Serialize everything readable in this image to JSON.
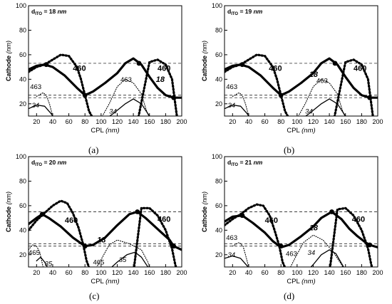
{
  "panels": [
    {
      "caption": "(a)",
      "thickness_label": "d",
      "thickness_sub": "ITO",
      "thickness_value": "= 18",
      "thickness_unit": "nm",
      "curve_labels": [
        {
          "text": "460",
          "at": [
            65,
            47
          ],
          "bold": true,
          "italic": false
        },
        {
          "text": "460",
          "at": [
            170,
            47
          ],
          "bold": true,
          "italic": false
        },
        {
          "text": "18",
          "at": [
            168,
            38
          ],
          "bold": true,
          "italic": true
        },
        {
          "text": "463",
          "at": [
            12,
            32
          ],
          "bold": false,
          "italic": false
        },
        {
          "text": "463",
          "at": [
            124,
            38
          ],
          "bold": false,
          "italic": false
        },
        {
          "text": "34",
          "at": [
            14,
            17
          ],
          "bold": false,
          "italic": true
        },
        {
          "text": "34",
          "at": [
            110,
            12
          ],
          "bold": false,
          "italic": true
        }
      ],
      "h_lines": [
        53,
        27,
        25
      ],
      "markers": [
        [
          32,
          52
        ],
        [
          80,
          27
        ],
        [
          147,
          53
        ],
        [
          190,
          25
        ]
      ]
    },
    {
      "caption": "(b)",
      "thickness_label": "d",
      "thickness_sub": "ITO",
      "thickness_value": "= 19",
      "thickness_unit": "nm",
      "curve_labels": [
        {
          "text": "460",
          "at": [
            65,
            47
          ],
          "bold": true,
          "italic": false
        },
        {
          "text": "460",
          "at": [
            170,
            47
          ],
          "bold": true,
          "italic": false
        },
        {
          "text": "18",
          "at": [
            115,
            42
          ],
          "bold": true,
          "italic": true
        },
        {
          "text": "463",
          "at": [
            12,
            32
          ],
          "bold": false,
          "italic": false
        },
        {
          "text": "463",
          "at": [
            124,
            37
          ],
          "bold": false,
          "italic": false
        },
        {
          "text": "34",
          "at": [
            14,
            17
          ],
          "bold": false,
          "italic": true
        },
        {
          "text": "34",
          "at": [
            110,
            12
          ],
          "bold": false,
          "italic": true
        }
      ],
      "h_lines": [
        53,
        27,
        25
      ],
      "markers": [
        [
          32,
          52
        ],
        [
          80,
          27
        ],
        [
          147,
          53
        ],
        [
          190,
          25
        ]
      ]
    },
    {
      "caption": "(c)",
      "thickness_label": "d",
      "thickness_sub": "ITO",
      "thickness_value": "= 20",
      "thickness_unit": "nm",
      "curve_labels": [
        {
          "text": "460",
          "at": [
            55,
            46
          ],
          "bold": true,
          "italic": false
        },
        {
          "text": "460",
          "at": [
            170,
            47
          ],
          "bold": true,
          "italic": false
        },
        {
          "text": "18",
          "at": [
            95,
            30
          ],
          "bold": true,
          "italic": true
        },
        {
          "text": "465",
          "at": [
            10,
            20
          ],
          "bold": false,
          "italic": false
        },
        {
          "text": "465",
          "at": [
            90,
            12
          ],
          "bold": false,
          "italic": false
        },
        {
          "text": "35",
          "at": [
            30,
            11
          ],
          "bold": false,
          "italic": true
        },
        {
          "text": "35",
          "at": [
            122,
            14
          ],
          "bold": false,
          "italic": true
        }
      ],
      "h_lines": [
        55,
        29,
        27
      ],
      "markers": [
        [
          27,
          53
        ],
        [
          80,
          27
        ],
        [
          145,
          55
        ],
        [
          190,
          27
        ]
      ]
    },
    {
      "caption": "(d)",
      "thickness_label": "d",
      "thickness_sub": "ITO",
      "thickness_value": "= 21",
      "thickness_unit": "nm",
      "curve_labels": [
        {
          "text": "460",
          "at": [
            60,
            46
          ],
          "bold": true,
          "italic": false
        },
        {
          "text": "460",
          "at": [
            168,
            47
          ],
          "bold": true,
          "italic": false
        },
        {
          "text": "18",
          "at": [
            115,
            40
          ],
          "bold": true,
          "italic": true
        },
        {
          "text": "463",
          "at": [
            12,
            32
          ],
          "bold": false,
          "italic": false
        },
        {
          "text": "463",
          "at": [
            86,
            19
          ],
          "bold": false,
          "italic": false
        },
        {
          "text": "34",
          "at": [
            14,
            18
          ],
          "bold": false,
          "italic": true
        },
        {
          "text": "34",
          "at": [
            113,
            20
          ],
          "bold": false,
          "italic": true
        }
      ],
      "h_lines": [
        55,
        29,
        27
      ],
      "markers": [
        [
          32,
          52
        ],
        [
          80,
          27
        ],
        [
          143,
          55
        ],
        [
          190,
          28
        ]
      ]
    }
  ],
  "chart_data": [
    {
      "type": "line",
      "panel": "(a)",
      "xlabel": "CPL",
      "xlabel_unit": "(nm)",
      "ylabel": "Cathode",
      "ylabel_unit": "(nm)",
      "xlim": [
        10,
        200
      ],
      "ylim": [
        10,
        100
      ],
      "xticks": [
        20,
        40,
        60,
        80,
        100,
        120,
        140,
        160,
        180,
        200
      ],
      "yticks": [
        20,
        40,
        60,
        80,
        100
      ],
      "series": [
        {
          "name": "18",
          "style": "solid-thick",
          "x": [
            10,
            20,
            30,
            40,
            55,
            70,
            80,
            90,
            105,
            120,
            130,
            140,
            150,
            160,
            170,
            180,
            190,
            200
          ],
          "y": [
            48,
            51,
            52,
            50,
            43,
            33,
            27,
            30,
            37,
            45,
            53,
            57,
            52,
            42,
            33,
            27,
            25,
            25
          ]
        },
        {
          "name": "460",
          "style": "dotted-thick",
          "x": [
            10,
            20,
            30,
            40,
            50,
            60,
            70,
            75,
            80,
            85,
            90,
            100,
            115,
            130,
            145,
            160,
            170,
            180,
            188,
            192,
            195
          ],
          "y": [
            46,
            50,
            52,
            56,
            60,
            59,
            50,
            40,
            27,
            14,
            8,
            5,
            5,
            5,
            5,
            54,
            56,
            52,
            40,
            20,
            5
          ]
        },
        {
          "name": "463",
          "style": "dotted-thin",
          "x": [
            20,
            28,
            32,
            36,
            40,
            60,
            100,
            110,
            120,
            130,
            140,
            150,
            156,
            162
          ],
          "y": [
            26,
            29,
            27,
            20,
            10,
            5,
            8,
            20,
            34,
            40,
            37,
            28,
            15,
            5
          ]
        },
        {
          "name": "34",
          "style": "solid-thin",
          "x": [
            10,
            20,
            30,
            38,
            45,
            100,
            115,
            130,
            140,
            150,
            158,
            165
          ],
          "y": [
            16,
            19,
            18,
            12,
            5,
            5,
            12,
            20,
            24,
            20,
            12,
            5
          ]
        }
      ]
    },
    {
      "type": "line",
      "panel": "(b)",
      "xlabel": "CPL",
      "xlabel_unit": "(nm)",
      "ylabel": "Cathode",
      "ylabel_unit": "(nm)",
      "xlim": [
        10,
        200
      ],
      "ylim": [
        10,
        100
      ],
      "xticks": [
        20,
        40,
        60,
        80,
        100,
        120,
        140,
        160,
        180,
        200
      ],
      "yticks": [
        20,
        40,
        60,
        80,
        100
      ],
      "series": [
        {
          "name": "18",
          "style": "solid-thick",
          "x": [
            10,
            20,
            30,
            40,
            55,
            70,
            80,
            90,
            105,
            120,
            130,
            140,
            150,
            160,
            170,
            180,
            190,
            200
          ],
          "y": [
            48,
            51,
            52,
            50,
            43,
            33,
            27,
            30,
            37,
            45,
            53,
            57,
            52,
            42,
            33,
            27,
            25,
            25
          ]
        },
        {
          "name": "460",
          "style": "dotted-thick",
          "x": [
            10,
            20,
            30,
            40,
            50,
            60,
            70,
            75,
            80,
            85,
            90,
            100,
            115,
            130,
            145,
            160,
            170,
            180,
            188,
            192,
            195
          ],
          "y": [
            46,
            50,
            52,
            56,
            60,
            59,
            50,
            40,
            27,
            14,
            8,
            5,
            5,
            5,
            5,
            54,
            56,
            52,
            40,
            20,
            5
          ]
        },
        {
          "name": "463",
          "style": "dotted-thin",
          "x": [
            20,
            28,
            32,
            36,
            40,
            60,
            100,
            110,
            120,
            130,
            140,
            150,
            156,
            162
          ],
          "y": [
            26,
            29,
            27,
            20,
            10,
            5,
            8,
            20,
            34,
            40,
            37,
            28,
            15,
            5
          ]
        },
        {
          "name": "34",
          "style": "solid-thin",
          "x": [
            10,
            20,
            30,
            38,
            45,
            100,
            115,
            130,
            140,
            150,
            158,
            165
          ],
          "y": [
            16,
            19,
            18,
            12,
            5,
            5,
            12,
            20,
            24,
            20,
            12,
            5
          ]
        }
      ]
    },
    {
      "type": "line",
      "panel": "(c)",
      "xlabel": "CPL",
      "xlabel_unit": "(nm)",
      "ylabel": "Cathode",
      "ylabel_unit": "(nm)",
      "xlim": [
        10,
        200
      ],
      "ylim": [
        10,
        100
      ],
      "xticks": [
        20,
        40,
        60,
        80,
        100,
        120,
        140,
        160,
        180,
        200
      ],
      "yticks": [
        20,
        40,
        60,
        80,
        100
      ],
      "series": [
        {
          "name": "18",
          "style": "solid-thick",
          "x": [
            10,
            20,
            27,
            35,
            50,
            65,
            80,
            90,
            105,
            120,
            135,
            145,
            155,
            165,
            175,
            185,
            190,
            200
          ],
          "y": [
            45,
            50,
            53,
            50,
            43,
            34,
            27,
            28,
            34,
            44,
            53,
            55,
            50,
            44,
            38,
            32,
            27,
            24
          ]
        },
        {
          "name": "460",
          "style": "dotted-thick",
          "x": [
            10,
            20,
            30,
            40,
            50,
            58,
            65,
            72,
            78,
            82,
            86,
            90,
            100,
            120,
            140,
            150,
            160,
            170,
            180,
            188,
            192,
            195
          ],
          "y": [
            40,
            48,
            54,
            60,
            64,
            62,
            54,
            42,
            28,
            15,
            8,
            5,
            5,
            5,
            5,
            58,
            58,
            52,
            40,
            25,
            12,
            5
          ]
        },
        {
          "name": "465",
          "style": "dotted-thin",
          "x": [
            10,
            15,
            20,
            24,
            28,
            60,
            90,
            100,
            110,
            120,
            135,
            150,
            158,
            162
          ],
          "y": [
            24,
            28,
            27,
            22,
            10,
            5,
            5,
            16,
            28,
            32,
            29,
            24,
            14,
            5
          ]
        },
        {
          "name": "35",
          "style": "solid-thin",
          "x": [
            20,
            25,
            30,
            34,
            38,
            100,
            110,
            120,
            132,
            142,
            150,
            158,
            165
          ],
          "y": [
            15,
            18,
            14,
            9,
            5,
            5,
            8,
            14,
            20,
            22,
            18,
            10,
            5
          ]
        }
      ]
    },
    {
      "type": "line",
      "panel": "(d)",
      "xlabel": "CPL",
      "xlabel_unit": "(nm)",
      "ylabel": "Cathode",
      "ylabel_unit": "(nm)",
      "xlim": [
        10,
        200
      ],
      "ylim": [
        10,
        100
      ],
      "xticks": [
        20,
        40,
        60,
        80,
        100,
        120,
        140,
        160,
        180,
        200
      ],
      "yticks": [
        20,
        40,
        60,
        80,
        100
      ],
      "series": [
        {
          "name": "18",
          "style": "solid-thick",
          "x": [
            10,
            20,
            32,
            45,
            60,
            70,
            80,
            90,
            105,
            120,
            130,
            143,
            155,
            165,
            175,
            185,
            190,
            200
          ],
          "y": [
            47,
            51,
            52,
            46,
            38,
            31,
            26,
            28,
            35,
            43,
            50,
            55,
            49,
            41,
            35,
            30,
            28,
            26
          ]
        },
        {
          "name": "460",
          "style": "dotted-thick",
          "x": [
            10,
            20,
            30,
            40,
            50,
            58,
            66,
            72,
            78,
            82,
            86,
            90,
            100,
            120,
            140,
            150,
            160,
            170,
            180,
            188,
            192,
            195
          ],
          "y": [
            44,
            49,
            53,
            58,
            61,
            60,
            52,
            40,
            27,
            14,
            8,
            5,
            5,
            5,
            5,
            57,
            58,
            52,
            40,
            25,
            12,
            5
          ]
        },
        {
          "name": "463",
          "style": "dotted-thin",
          "x": [
            20,
            28,
            33,
            36,
            40,
            60,
            88,
            98,
            108,
            120,
            132,
            145,
            155,
            160
          ],
          "y": [
            27,
            30,
            27,
            20,
            10,
            5,
            5,
            18,
            30,
            36,
            32,
            22,
            12,
            5
          ]
        },
        {
          "name": "34",
          "style": "solid-thin",
          "x": [
            10,
            20,
            30,
            38,
            45,
            110,
            120,
            130,
            140,
            148,
            155,
            162
          ],
          "y": [
            17,
            19,
            17,
            11,
            5,
            5,
            12,
            20,
            24,
            21,
            13,
            5
          ]
        }
      ]
    }
  ]
}
